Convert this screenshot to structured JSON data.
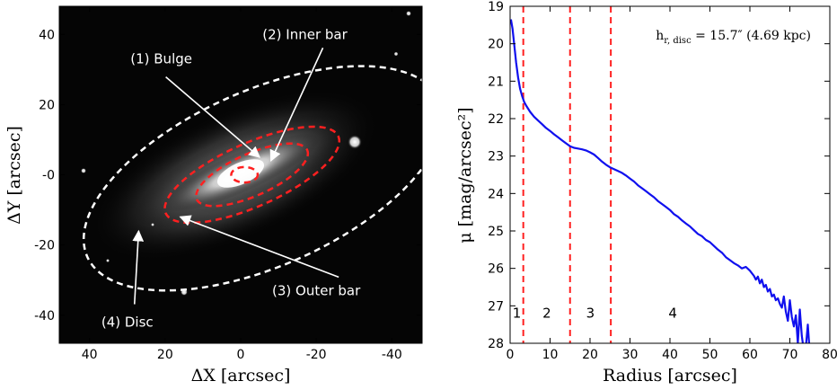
{
  "chart_data": [
    {
      "type": "image",
      "xlabel": "ΔX [arcsec]",
      "ylabel": "ΔY [arcsec]",
      "xlim": [
        48,
        -48
      ],
      "ylim": [
        -48,
        48
      ],
      "xticks": [
        40,
        20,
        0,
        -20,
        -40
      ],
      "xtick_labels": [
        "40",
        "20",
        "0",
        "-20",
        "-40"
      ],
      "yticks": [
        40,
        20,
        0,
        -20,
        -40
      ],
      "ytick_labels": [
        "40",
        "20",
        "-0",
        "-20",
        "-40"
      ],
      "annotations": [
        {
          "label": "(1) Bulge",
          "text_at": [
            21,
            33
          ],
          "arrow_to": [
            -5,
            5
          ]
        },
        {
          "label": "(2) Inner bar",
          "text_at": [
            -17,
            40
          ],
          "arrow_to": [
            -8,
            4
          ]
        },
        {
          "label": "(3) Outer bar",
          "text_at": [
            -20,
            -33
          ],
          "arrow_to": [
            16,
            -12
          ]
        },
        {
          "label": "(4) Disc",
          "text_at": [
            30,
            -42
          ],
          "arrow_to": [
            27,
            -16
          ]
        }
      ],
      "ellipses": [
        {
          "region": "bulge",
          "color": "#ff2020",
          "center": [
            -1,
            0
          ],
          "semi_major": 3.5,
          "semi_minor": 2.2,
          "pa_deg": 0
        },
        {
          "region": "inner bar",
          "color": "#ff2020",
          "center": [
            -3,
            0
          ],
          "semi_major": 16,
          "semi_minor": 6,
          "pa_deg": 24
        },
        {
          "region": "outer bar",
          "color": "#ff2020",
          "center": [
            -3,
            0
          ],
          "semi_major": 25,
          "semi_minor": 9,
          "pa_deg": 24
        },
        {
          "region": "disc",
          "color": "#ffffff",
          "center": [
            -6,
            -1
          ],
          "semi_major": 51,
          "semi_minor": 25,
          "pa_deg": 24
        }
      ]
    },
    {
      "type": "line",
      "xlabel": "Radius [arcsec]",
      "ylabel": "μ [mag/arcsec²]",
      "xlim": [
        0,
        80
      ],
      "ylim": [
        28,
        19
      ],
      "xticks": [
        0,
        10,
        20,
        30,
        40,
        50,
        60,
        70,
        80
      ],
      "yticks": [
        19,
        20,
        21,
        22,
        23,
        24,
        25,
        26,
        27,
        28
      ],
      "annotation": "h_{r,disc} = 15.7″ (4.69 kpc)",
      "annotation_parts": {
        "h": "h",
        "sub": "r, disc",
        "eq": " = 15.7″ (4.69 kpc)"
      },
      "series": [
        {
          "color": "#1010ee",
          "x": [
            0.2,
            0.6,
            1,
            1.5,
            2,
            2.5,
            3,
            3.5,
            4,
            5,
            6,
            7,
            8,
            9,
            10,
            11,
            12,
            13,
            14,
            15,
            16,
            17,
            18,
            19,
            20,
            21,
            22,
            23,
            24,
            25,
            26,
            27,
            28,
            29,
            30,
            31,
            32,
            33,
            34,
            35,
            36,
            37,
            38,
            39,
            40,
            41,
            42,
            43,
            44,
            45,
            46,
            47,
            48,
            49,
            50,
            51,
            52,
            53,
            54,
            55,
            56,
            57,
            58,
            59,
            60,
            61,
            61.5,
            62,
            62.5,
            63,
            63.5,
            64,
            64.5,
            65,
            65.5,
            66,
            66.5,
            67,
            67.5,
            68,
            68.5,
            69,
            69.5,
            70,
            70.5,
            71,
            71.5,
            72,
            72.5,
            73,
            73.5,
            74,
            74.5,
            75,
            75.5
          ],
          "y": [
            19.35,
            19.6,
            20.0,
            20.5,
            20.9,
            21.2,
            21.4,
            21.55,
            21.65,
            21.82,
            21.95,
            22.05,
            22.15,
            22.25,
            22.33,
            22.42,
            22.5,
            22.58,
            22.66,
            22.74,
            22.78,
            22.8,
            22.82,
            22.85,
            22.9,
            22.96,
            23.05,
            23.15,
            23.23,
            23.3,
            23.35,
            23.4,
            23.45,
            23.52,
            23.6,
            23.68,
            23.78,
            23.86,
            23.94,
            24.02,
            24.1,
            24.2,
            24.28,
            24.36,
            24.44,
            24.55,
            24.62,
            24.72,
            24.8,
            24.88,
            24.98,
            25.08,
            25.14,
            25.24,
            25.3,
            25.4,
            25.5,
            25.58,
            25.7,
            25.78,
            25.86,
            25.92,
            26.0,
            25.96,
            26.06,
            26.2,
            26.3,
            26.22,
            26.4,
            26.3,
            26.5,
            26.44,
            26.62,
            26.55,
            26.75,
            26.7,
            26.85,
            26.8,
            26.95,
            27.05,
            26.75,
            27.15,
            27.4,
            26.85,
            27.3,
            27.55,
            27.25,
            28.0,
            27.1,
            27.8,
            28.2,
            28.1,
            27.5,
            28.3,
            28.0
          ]
        }
      ],
      "vlines": {
        "color": "#ff2020",
        "style": "dashed",
        "x": [
          3.3,
          15,
          25.2
        ]
      },
      "region_labels": [
        {
          "label": "1",
          "x": 1.7
        },
        {
          "label": "2",
          "x": 9.2
        },
        {
          "label": "3",
          "x": 20.1
        },
        {
          "label": "4",
          "x": 40.7
        }
      ],
      "region_label_y": 27.2
    }
  ]
}
